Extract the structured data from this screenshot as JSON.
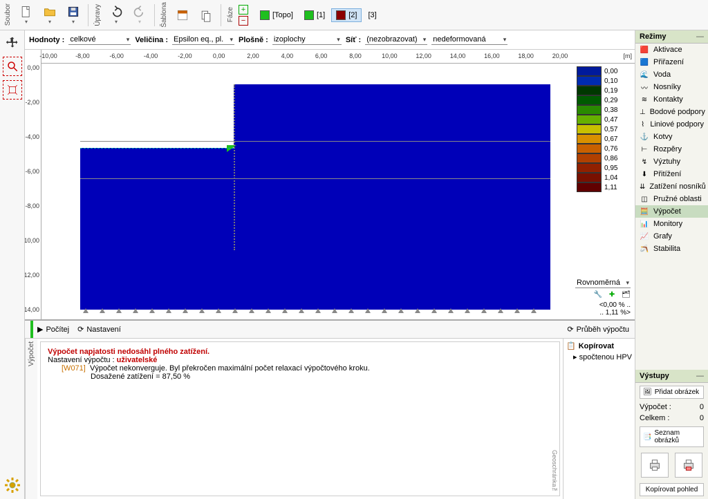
{
  "toolbar": {
    "soubor": "Soubor",
    "upravy": "Úpravy",
    "sablona": "Šablona",
    "faze": "Fáze",
    "phases": [
      {
        "label": "[Topo]",
        "color": "#1fbf1f",
        "active": false
      },
      {
        "label": "[1]",
        "color": "#1fbf1f",
        "active": false
      },
      {
        "label": "[2]",
        "color": "#8b0000",
        "active": true
      },
      {
        "label": "[3]",
        "color": null,
        "active": false
      }
    ]
  },
  "params": {
    "hodnoty_lbl": "Hodnoty :",
    "hodnoty_val": "celkové",
    "velicina_lbl": "Veličina :",
    "velicina_val": "Epsilon eq., pl.",
    "plosne_lbl": "Plošně :",
    "plosne_val": "izoplochy",
    "sit_lbl": "Síť :",
    "sit_val": "(nezobrazovat)",
    "deform_val": "nedeformovaná"
  },
  "ruler": {
    "x_ticks": [
      "-10,00",
      "-8,00",
      "-6,00",
      "-4,00",
      "-2,00",
      "0,00",
      "2,00",
      "4,00",
      "6,00",
      "8,00",
      "10,00",
      "12,00",
      "14,00",
      "16,00",
      "18,00",
      "20,00"
    ],
    "x_unit": "[m]",
    "y_ticks": [
      "0,00",
      "-2,00",
      "-4,00",
      "-6,00",
      "-8,00",
      "-10,00",
      "-12,00",
      "-14,00"
    ]
  },
  "legend": {
    "rows": [
      {
        "c": "#001a9c",
        "v": "0,00"
      },
      {
        "c": "#002bb0",
        "v": "0,10"
      },
      {
        "c": "#003800",
        "v": "0,19"
      },
      {
        "c": "#005a00",
        "v": "0,29"
      },
      {
        "c": "#2a8a00",
        "v": "0,38"
      },
      {
        "c": "#66b000",
        "v": "0,47"
      },
      {
        "c": "#c8c000",
        "v": "0,57"
      },
      {
        "c": "#d89000",
        "v": "0,67"
      },
      {
        "c": "#c86000",
        "v": "0,76"
      },
      {
        "c": "#b04000",
        "v": "0,86"
      },
      {
        "c": "#902000",
        "v": "0,95"
      },
      {
        "c": "#781000",
        "v": "1,04"
      },
      {
        "c": "#600000",
        "v": "1,11"
      }
    ]
  },
  "mesh": {
    "scale_val": "Rovnoměrná",
    "range_lo": "<0,00 % ..",
    "range_hi": ".. 1,11 %>"
  },
  "bottom": {
    "pocitej": "Počítej",
    "nastaveni": "Nastavení",
    "prubeh": "Průběh výpočtu",
    "kopirovat": "Kopírovat",
    "kopirovat_item": "spočtenou HPV",
    "log": {
      "err": "Výpočet napjatosti nedosáhl plného zatížení.",
      "set_lbl": "Nastavení výpočtu : ",
      "set_val": "uživatelské",
      "wcode": "[W071]",
      "wtext": "Výpočet nekonverguje. Byl překročen maximální počet relaxací výpočtového kroku.",
      "wtext2": "Dosažené zatížení = 87,50 %"
    },
    "vypocet_lbl": "Výpočet",
    "watermark": "Geoschránka™"
  },
  "right": {
    "rezimy": "Režimy",
    "modes": [
      {
        "ic": "🟥",
        "t": "Aktivace"
      },
      {
        "ic": "🟦",
        "t": "Přiřazení"
      },
      {
        "ic": "🌊",
        "t": "Voda"
      },
      {
        "ic": "〰",
        "t": "Nosníky"
      },
      {
        "ic": "≋",
        "t": "Kontakty"
      },
      {
        "ic": "⊥",
        "t": "Bodové podpory"
      },
      {
        "ic": "⌇",
        "t": "Liniové podpory"
      },
      {
        "ic": "⚓",
        "t": "Kotvy"
      },
      {
        "ic": "⊢",
        "t": "Rozpěry"
      },
      {
        "ic": "↯",
        "t": "Výztuhy"
      },
      {
        "ic": "⬇",
        "t": "Přitížení"
      },
      {
        "ic": "⇊",
        "t": "Zatížení nosníků"
      },
      {
        "ic": "◫",
        "t": "Pružné oblasti"
      },
      {
        "ic": "🧮",
        "t": "Výpočet",
        "sel": true
      },
      {
        "ic": "📊",
        "t": "Monitory"
      },
      {
        "ic": "📈",
        "t": "Grafy"
      },
      {
        "ic": "🪃",
        "t": "Stabilita"
      }
    ],
    "vystupy": "Výstupy",
    "pridat": "Přidat obrázek",
    "vypocet_lbl": "Výpočet :",
    "vypocet_n": "0",
    "celkem_lbl": "Celkem :",
    "celkem_n": "0",
    "seznam": "Seznam obrázků",
    "kop_pohled": "Kopírovat pohled"
  },
  "colors": {
    "model": "#0000b8",
    "accent_green": "#1fbf1f",
    "panel_bg": "#f4f4ee",
    "title_bg": "#d8e4c8"
  }
}
